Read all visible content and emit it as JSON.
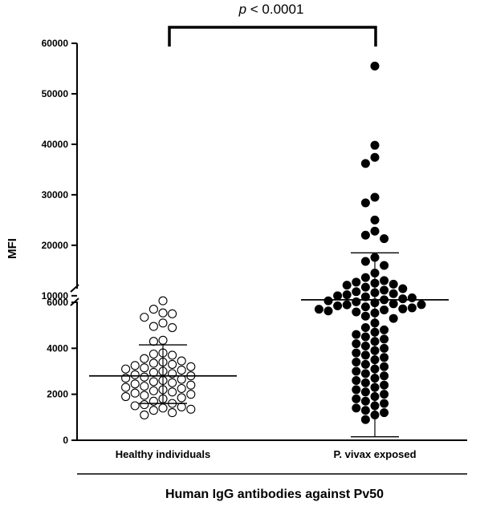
{
  "chart_data": {
    "type": "scatter",
    "subtype": "dot-plot with broken y-axis",
    "ylabel": "MFI",
    "xlabel": "Human IgG antibodies against Pv50",
    "categories": [
      "Healthy individuals",
      "P. vivax exposed"
    ],
    "y_axis": {
      "broken": true,
      "lower_segment": {
        "range": [
          0,
          6000
        ],
        "ticks": [
          0,
          2000,
          4000,
          6000
        ]
      },
      "upper_segment": {
        "range": [
          6000,
          60000
        ],
        "ticks": [
          10000,
          20000,
          30000,
          40000,
          50000,
          60000
        ]
      }
    },
    "significance": {
      "label_italic": "p",
      "label_rest": " < 0.0001",
      "between": [
        "Healthy individuals",
        "P. vivax exposed"
      ]
    },
    "series": [
      {
        "category": "Healthy individuals",
        "marker": "open-circle",
        "mean": 2800,
        "sd_upper": 4150,
        "sd_lower": 1600,
        "values": [
          9000,
          6600,
          5700,
          5500,
          5350,
          5100,
          4950,
          4900,
          4350,
          4300,
          3800,
          3750,
          3700,
          3550,
          3450,
          3400,
          3350,
          3300,
          3250,
          3200,
          3150,
          3100,
          3050,
          3000,
          2950,
          2900,
          2850,
          2800,
          2750,
          2700,
          2650,
          2600,
          2550,
          2500,
          2450,
          2400,
          2350,
          2300,
          2250,
          2200,
          2150,
          2100,
          2050,
          2000,
          1950,
          1900,
          1850,
          1800,
          1700,
          1600,
          1550,
          1500,
          1450,
          1400,
          1350,
          1300,
          1200,
          1100
        ]
      },
      {
        "category": "P. vivax exposed",
        "marker": "filled-circle",
        "mean": 9200,
        "sd_upper": 18500,
        "sd_lower": 150,
        "values": [
          55500,
          39800,
          37400,
          36200,
          29500,
          28400,
          25000,
          22800,
          22000,
          21300,
          17600,
          16800,
          16000,
          14500,
          13600,
          13000,
          12700,
          12500,
          12300,
          12100,
          11700,
          11400,
          11100,
          10800,
          10600,
          10400,
          10200,
          10000,
          9800,
          9600,
          9400,
          9200,
          9000,
          8800,
          8600,
          8400,
          8200,
          8000,
          7800,
          7600,
          7400,
          7200,
          7000,
          6800,
          6600,
          5900,
          5700,
          5400,
          5300,
          5100,
          4900,
          4800,
          4700,
          4600,
          4500,
          4400,
          4300,
          4200,
          4100,
          4000,
          3900,
          3800,
          3700,
          3600,
          3500,
          3400,
          3300,
          3200,
          3100,
          3000,
          2900,
          2800,
          2700,
          2600,
          2500,
          2400,
          2300,
          2200,
          2100,
          2000,
          1900,
          1800,
          1700,
          1600,
          1500,
          1400,
          1300,
          1200,
          1100,
          900
        ]
      }
    ]
  }
}
